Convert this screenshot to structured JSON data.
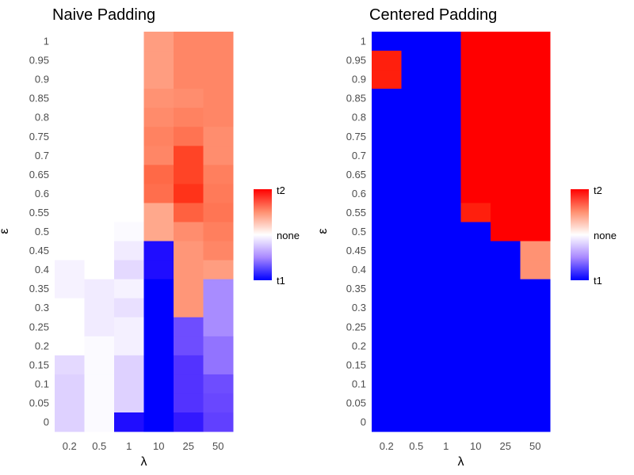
{
  "chart_data": [
    {
      "type": "heatmap",
      "title": "Naive Padding",
      "xlabel": "λ",
      "ylabel": "ε",
      "x_categories": [
        "0.2",
        "0.5",
        "1",
        "10",
        "25",
        "50"
      ],
      "y_categories": [
        "0",
        "0.05",
        "0.1",
        "0.15",
        "0.2",
        "0.25",
        "0.3",
        "0.35",
        "0.4",
        "0.45",
        "0.5",
        "0.55",
        "0.6",
        "0.65",
        "0.7",
        "0.75",
        "0.8",
        "0.85",
        "0.9",
        "0.95",
        "1"
      ],
      "value_note": "fill scale: -1 = t1 (blue), 0 = none (white), 1 = t2 (red); values listed per column from ε=1 down to ε=0",
      "columns": [
        [
          0,
          0,
          0,
          0,
          0,
          0,
          0,
          0,
          0,
          0,
          0,
          0,
          -0.05,
          -0.05,
          0,
          0,
          0,
          -0.15,
          -0.18,
          -0.18,
          -0.18
        ],
        [
          0,
          0,
          0,
          0,
          0,
          0,
          0,
          0,
          0,
          0,
          0,
          0,
          0,
          -0.08,
          -0.08,
          -0.08,
          -0.02,
          -0.02,
          -0.02,
          -0.02,
          -0.02
        ],
        [
          0,
          0,
          0,
          0,
          0,
          0,
          0,
          0,
          0,
          0,
          -0.02,
          -0.08,
          -0.15,
          -0.05,
          -0.12,
          -0.06,
          -0.06,
          -0.18,
          -0.18,
          -0.18,
          -0.95
        ],
        [
          0.5,
          0.5,
          0.5,
          0.55,
          0.58,
          0.62,
          0.6,
          0.72,
          0.7,
          0.45,
          0.45,
          -0.95,
          -0.95,
          -1,
          -1,
          -1,
          -1,
          -1,
          -1,
          -1,
          -1
        ],
        [
          0.6,
          0.6,
          0.6,
          0.57,
          0.62,
          0.68,
          0.85,
          0.85,
          0.9,
          0.75,
          0.57,
          0.53,
          0.53,
          0.53,
          0.53,
          -0.7,
          -0.7,
          -0.8,
          -0.8,
          -0.8,
          -0.9
        ],
        [
          0.6,
          0.6,
          0.6,
          0.6,
          0.6,
          0.57,
          0.57,
          0.63,
          0.65,
          0.67,
          0.63,
          0.6,
          0.5,
          -0.45,
          -0.45,
          -0.45,
          -0.55,
          -0.55,
          -0.7,
          -0.72,
          -0.75
        ]
      ],
      "legend": {
        "labels": [
          "t2",
          "none",
          "t1"
        ],
        "placement": "right"
      }
    },
    {
      "type": "heatmap",
      "title": "Centered Padding",
      "xlabel": "λ",
      "ylabel": "ε",
      "x_categories": [
        "0.2",
        "0.5",
        "1",
        "10",
        "25",
        "50"
      ],
      "y_categories": [
        "0",
        "0.05",
        "0.1",
        "0.15",
        "0.2",
        "0.25",
        "0.3",
        "0.35",
        "0.4",
        "0.45",
        "0.5",
        "0.55",
        "0.6",
        "0.65",
        "0.7",
        "0.75",
        "0.8",
        "0.85",
        "0.9",
        "0.95",
        "1"
      ],
      "value_note": "values listed per column from ε=1 down to ε=0",
      "columns": [
        [
          -1,
          0.95,
          0.95,
          -1,
          -1,
          -1,
          -1,
          -1,
          -1,
          -1,
          -1,
          -1,
          -1,
          -1,
          -1,
          -1,
          -1,
          -1,
          -1,
          -1,
          -1
        ],
        [
          -1,
          -1,
          -1,
          -1,
          -1,
          -1,
          -1,
          -1,
          -1,
          -1,
          -1,
          -1,
          -1,
          -1,
          -1,
          -1,
          -1,
          -1,
          -1,
          -1,
          -1
        ],
        [
          -1,
          -1,
          -1,
          -1,
          -1,
          -1,
          -1,
          -1,
          -1,
          -1,
          -1,
          -1,
          -1,
          -1,
          -1,
          -1,
          -1,
          -1,
          -1,
          -1,
          -1
        ],
        [
          1,
          1,
          1,
          1,
          1,
          1,
          1,
          1,
          1,
          0.95,
          -1,
          -1,
          -1,
          -1,
          -1,
          -1,
          -1,
          -1,
          -1,
          -1,
          -1
        ],
        [
          1,
          1,
          1,
          1,
          1,
          1,
          1,
          1,
          1,
          1,
          1,
          -1,
          -1,
          -1,
          -1,
          -1,
          -1,
          -1,
          -1,
          -1,
          -1
        ],
        [
          1,
          1,
          1,
          1,
          1,
          1,
          1,
          1,
          1,
          1,
          1,
          0.55,
          0.55,
          -1,
          -1,
          -1,
          -1,
          -1,
          -1,
          -1,
          -1
        ]
      ],
      "legend": {
        "labels": [
          "t2",
          "none",
          "t1"
        ],
        "placement": "right"
      }
    }
  ],
  "colors": {
    "t1": "#0000ff",
    "none": "#ffffff",
    "t2": "#ff0000"
  }
}
